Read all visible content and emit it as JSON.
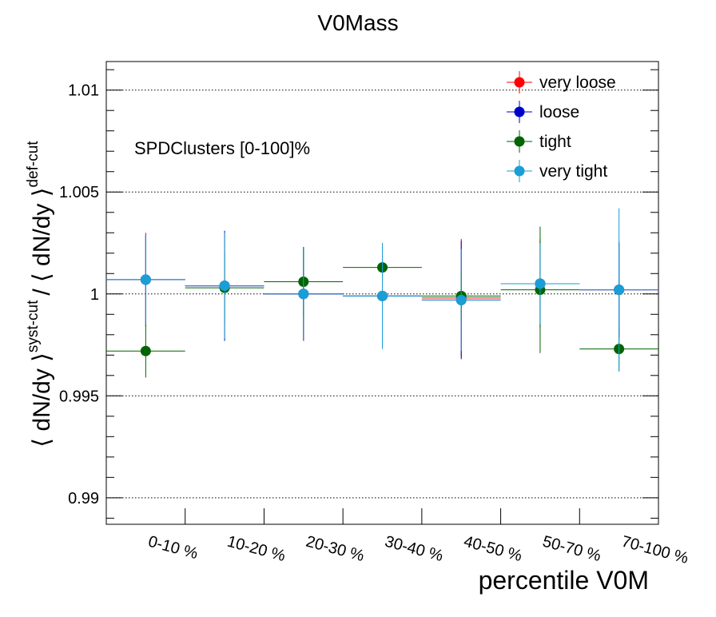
{
  "chart_data": {
    "type": "scatter",
    "title": "V0Mass",
    "xlabel": "percentile V0M",
    "ylabel_main": "⟨ dN/dy ⟩",
    "ylabel_sup1": "syst-cut",
    "ylabel_div": "/ ⟨ dN/dy ⟩",
    "ylabel_sup2": "def-cut",
    "annotation": "SPDClusters [0-100]%",
    "categories": [
      "0-10 %",
      "10-20 %",
      "20-30 %",
      "30-40 %",
      "40-50 %",
      "50-70 %",
      "70-100 %"
    ],
    "ylim": [
      0.9887,
      1.0114
    ],
    "yticks_major": [
      0.99,
      0.995,
      1.0,
      1.005,
      1.01
    ],
    "ytick_labels": [
      "0.99",
      "0.995",
      "1",
      "1.005",
      "1.01"
    ],
    "grid": "horizontal dotted at major y ticks",
    "legend_position": "top-right",
    "series": [
      {
        "name": "very loose",
        "color": "#ff0000",
        "values": [
          1.0007,
          1.0004,
          1.0,
          0.9999,
          0.9998,
          1.0005,
          1.0002
        ],
        "errors": [
          0.0023,
          0.0026,
          0.0023,
          0.0025,
          0.0029,
          0.0022,
          0.0024
        ]
      },
      {
        "name": "loose",
        "color": "#0000cc",
        "values": [
          1.0007,
          1.0004,
          1.0,
          0.9999,
          0.9997,
          1.0005,
          1.0002
        ],
        "errors": [
          0.0022,
          0.0027,
          0.0023,
          0.0025,
          0.0029,
          0.0021,
          0.0023
        ]
      },
      {
        "name": "tight",
        "color": "#006400",
        "values": [
          0.9972,
          1.0003,
          1.0006,
          1.0013,
          0.9999,
          1.0002,
          0.9973
        ],
        "errors": [
          0.0013,
          0.0017,
          0.0017,
          0.0012,
          0.0013,
          0.0031,
          0.0011
        ]
      },
      {
        "name": "very tight",
        "color": "#1a9ed6",
        "values": [
          1.0007,
          1.0004,
          1.0,
          0.9999,
          0.9997,
          1.0005,
          1.0002
        ],
        "errors": [
          0.0022,
          0.0026,
          0.0023,
          0.0026,
          0.0025,
          0.002,
          0.004
        ]
      }
    ]
  }
}
